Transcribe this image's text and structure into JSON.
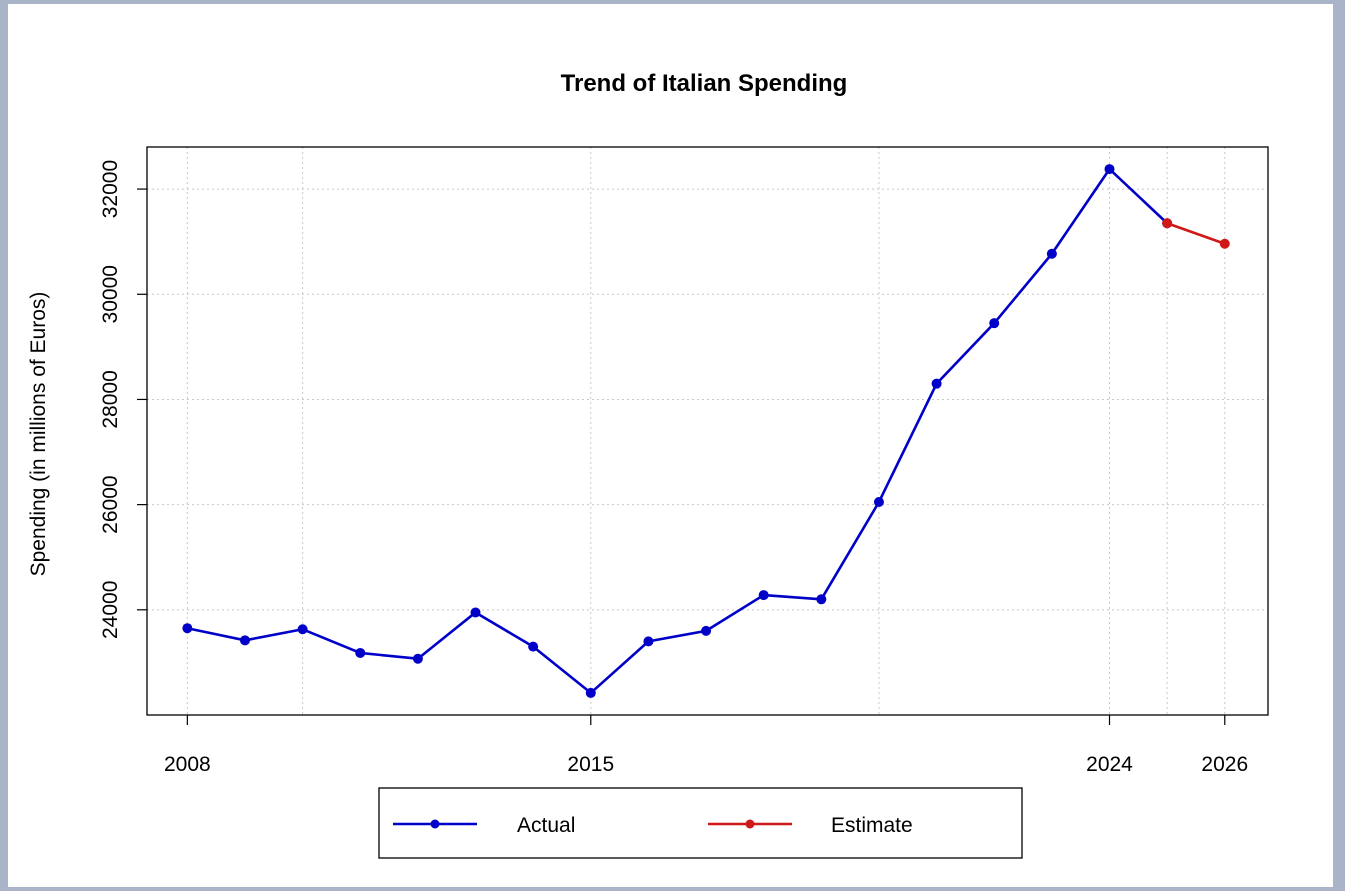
{
  "chart_data": {
    "type": "line",
    "title": "Trend of Italian Spending",
    "xlabel": "",
    "ylabel": "Spending (in millions of Euros)",
    "xlim": [
      2007.3,
      2026.75
    ],
    "ylim": [
      22000,
      32800
    ],
    "x_ticks": [
      2008,
      2015,
      2024,
      2026
    ],
    "x_grid": [
      2008,
      2010,
      2015,
      2020,
      2024,
      2025,
      2026
    ],
    "y_ticks": [
      24000,
      26000,
      28000,
      30000,
      32000
    ],
    "grid": true,
    "legend_position": "bottom",
    "series": [
      {
        "name": "Actual",
        "color": "#0000c8",
        "x": [
          2008,
          2009,
          2010,
          2011,
          2012,
          2013,
          2014,
          2015,
          2016,
          2017,
          2018,
          2019,
          2020,
          2021,
          2022,
          2023,
          2024,
          2025
        ],
        "values": [
          23650,
          23420,
          23630,
          23180,
          23070,
          23950,
          23300,
          22420,
          23400,
          23600,
          24280,
          24200,
          26050,
          28300,
          29450,
          30770,
          32380,
          31350
        ]
      },
      {
        "name": "Estimate",
        "color": "#d01818",
        "x": [
          2025,
          2026
        ],
        "values": [
          31350,
          30960
        ]
      }
    ]
  }
}
